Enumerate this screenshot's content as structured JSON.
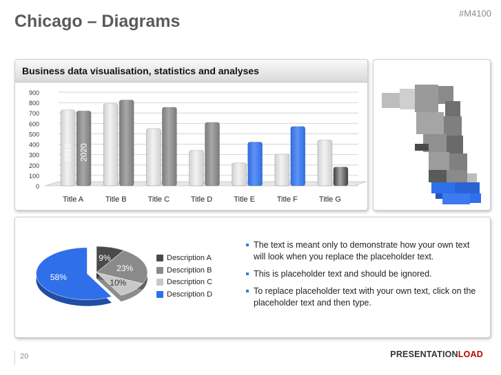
{
  "header": {
    "title": "Chicago – Diagrams",
    "code": "#M4100"
  },
  "chart_panel": {
    "title": "Business data visualisation, statistics and analyses"
  },
  "chart_data": [
    {
      "type": "bar",
      "categories": [
        "Title A",
        "Title B",
        "Title C",
        "Title D",
        "Title E",
        "Title F",
        "Title G"
      ],
      "series": [
        {
          "name": "2015",
          "values": [
            730,
            790,
            550,
            340,
            220,
            305,
            440
          ]
        },
        {
          "name": "2020",
          "values": [
            720,
            825,
            755,
            610,
            420,
            570,
            180
          ]
        }
      ],
      "ylim": [
        0,
        900
      ],
      "yticks": [
        0,
        100,
        200,
        300,
        400,
        500,
        600,
        700,
        800,
        900
      ],
      "colors": {
        "2015": [
          "#d0d0d0",
          "#d0d0d0",
          "#d0d0d0",
          "#d0d0d0",
          "#d0d0d0",
          "#d0d0d0",
          "#d0d0d0"
        ],
        "2020": [
          "#7b7b7b",
          "#7b7b7b",
          "#7b7b7b",
          "#7b7b7b",
          "#2d6de6",
          "#2d6de6",
          "#404040"
        ]
      },
      "grid": true
    },
    {
      "type": "pie",
      "labels": [
        "Description A",
        "Description B",
        "Description C",
        "Description D"
      ],
      "values": [
        9,
        23,
        10,
        58
      ],
      "value_labels": [
        "9%",
        "23%",
        "10%",
        "58%"
      ],
      "colors": [
        "#4a4a4a",
        "#8a8a8a",
        "#c8c8c8",
        "#2f6fea"
      ]
    }
  ],
  "legend": {
    "items": [
      {
        "label": "Description A",
        "color": "#4a4a4a"
      },
      {
        "label": "Description B",
        "color": "#8a8a8a"
      },
      {
        "label": "Description C",
        "color": "#c8c8c8"
      },
      {
        "label": "Description D",
        "color": "#2f6fea"
      }
    ]
  },
  "bullets": [
    "The text is meant only to demonstrate how your own text will look when you replace the placeholder text.",
    "This is placeholder text and should be ignored.",
    "To replace placeholder text with your own text, click on the placeholder text and then type."
  ],
  "footer": {
    "page": "20",
    "brand_main": "PRESENTATION",
    "brand_accent": "LOAD"
  },
  "map": {
    "base_color": "#8f8f8f",
    "dark_color": "#555555",
    "light_color": "#cfcfcf",
    "highlight_color": "#2f6fea"
  }
}
